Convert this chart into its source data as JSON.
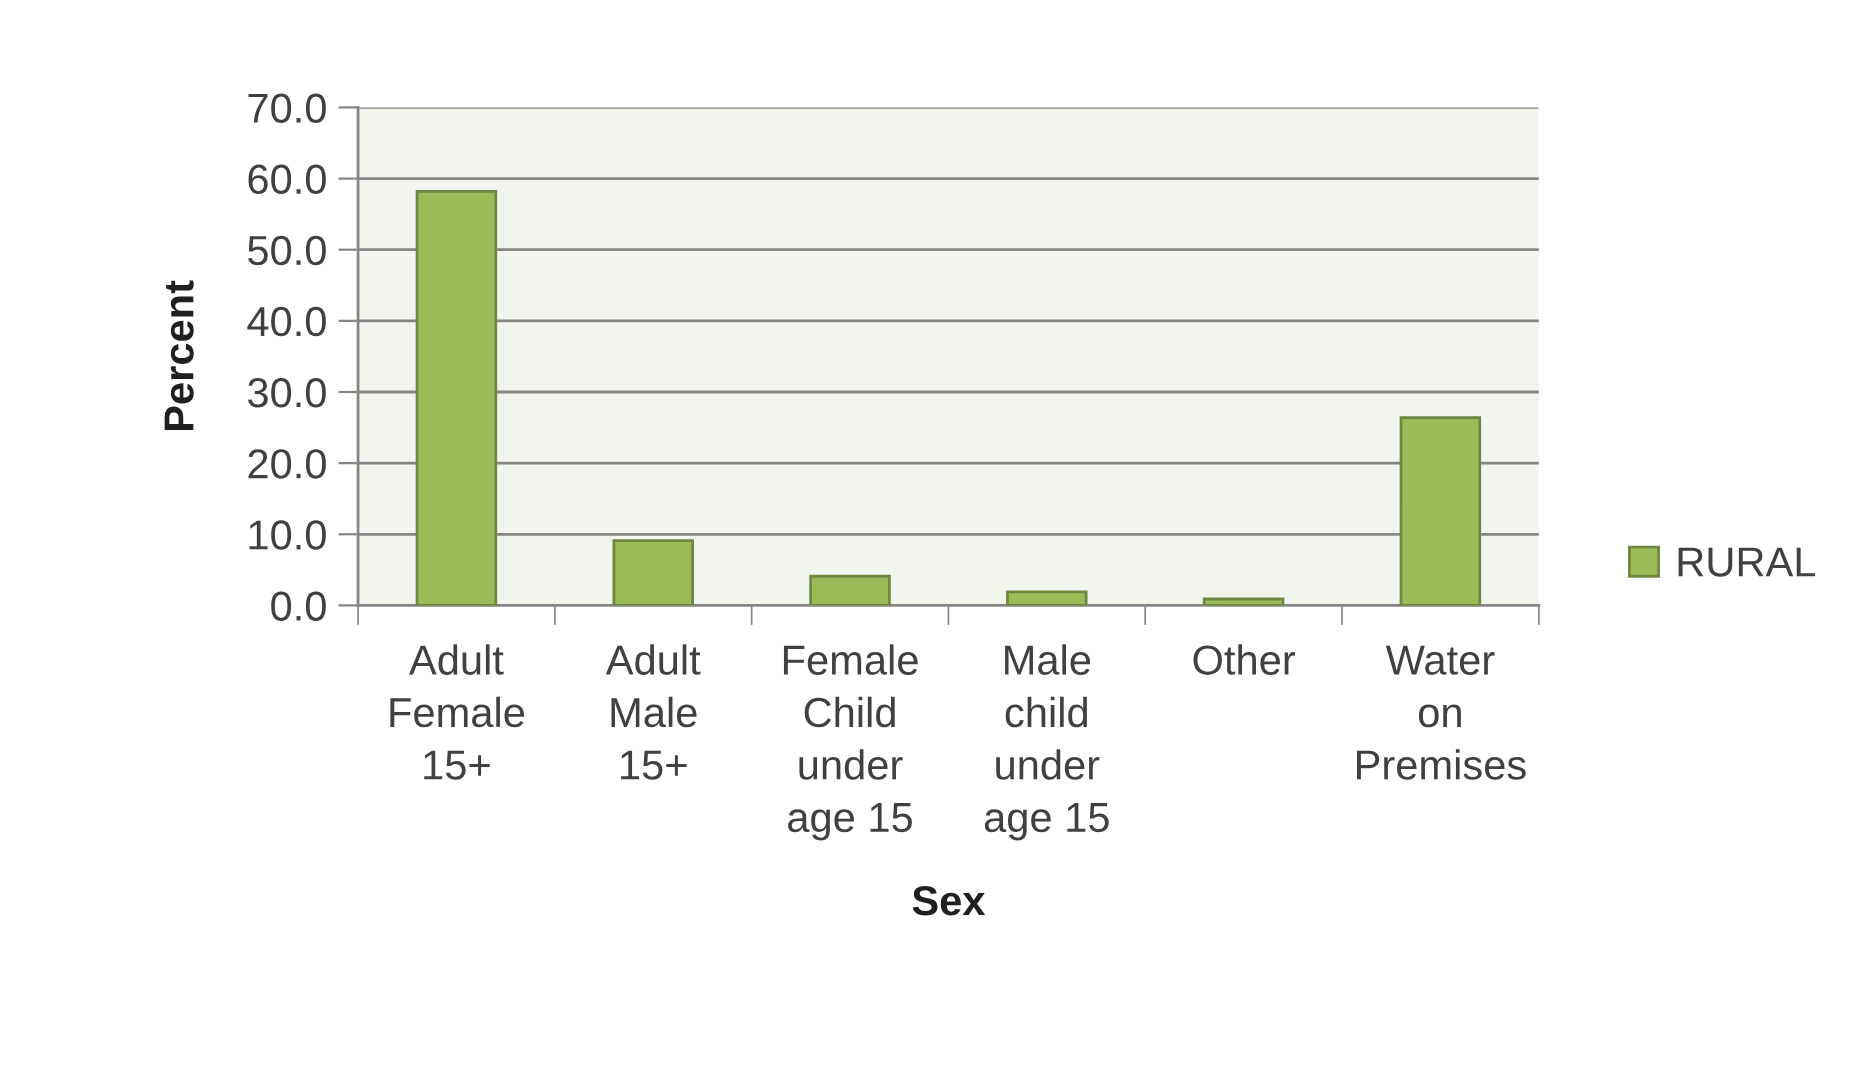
{
  "chart_data": {
    "type": "bar",
    "xlabel": "Sex",
    "ylabel": "Percent",
    "categories": [
      "Adult\nFemale\n15+",
      "Adult\nMale\n15+",
      "Female\nChild\nunder\nage 15",
      "Male\nchild\nunder\nage 15",
      "Other",
      "Water\non\nPremises"
    ],
    "series": [
      {
        "name": "RURAL",
        "color": "#9bbb59",
        "values": [
          58.2,
          9.1,
          4.1,
          1.9,
          0.9,
          26.4
        ]
      }
    ],
    "ylim": [
      0,
      70
    ],
    "yticks": [
      {
        "value": 0,
        "label": "0.0"
      },
      {
        "value": 10,
        "label": "10.0"
      },
      {
        "value": 20,
        "label": "20.0"
      },
      {
        "value": 30,
        "label": "30.0"
      },
      {
        "value": 40,
        "label": "40.0"
      },
      {
        "value": 50,
        "label": "50.0"
      },
      {
        "value": 60,
        "label": "60.0"
      },
      {
        "value": 70,
        "label": "70.0"
      }
    ],
    "grid": "y",
    "legend": "right"
  }
}
